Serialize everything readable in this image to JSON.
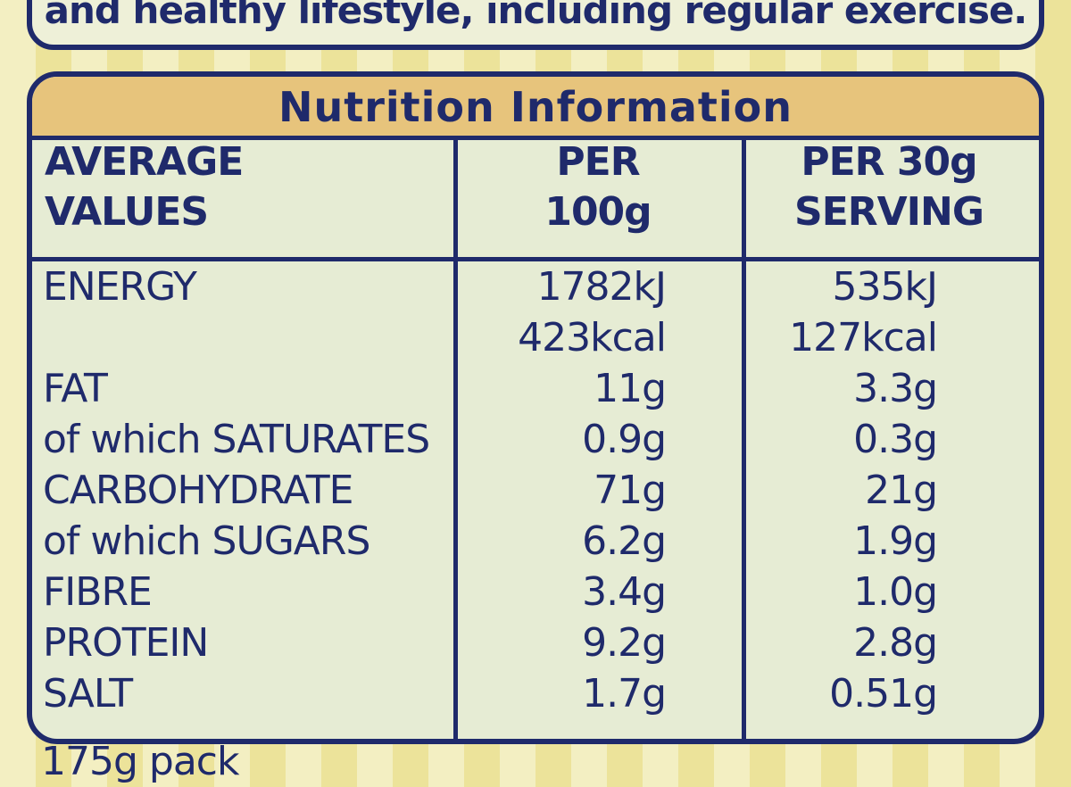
{
  "top_text": "and healthy lifestyle, including regular exercise.",
  "title": "Nutrition Information",
  "table": {
    "header": [
      [
        "AVERAGE",
        "VALUES"
      ],
      [
        "PER",
        "100g"
      ],
      [
        "PER 30g",
        "SERVING"
      ]
    ],
    "rows": [
      {
        "label": "ENERGY",
        "per_100g": [
          "1782kJ",
          "423kcal"
        ],
        "per_serving": [
          "535kJ",
          "127kcal"
        ]
      },
      {
        "label": "FAT",
        "per_100g": "11g",
        "per_serving": "3.3g"
      },
      {
        "label": "of which SATURATES",
        "per_100g": "0.9g",
        "per_serving": "0.3g"
      },
      {
        "label": "CARBOHYDRATE",
        "per_100g": "71g",
        "per_serving": "21g"
      },
      {
        "label": "of which SUGARS",
        "per_100g": "6.2g",
        "per_serving": "1.9g"
      },
      {
        "label": "FIBRE",
        "per_100g": "3.4g",
        "per_serving": "1.0g"
      },
      {
        "label": "PROTEIN",
        "per_100g": "9.2g",
        "per_serving": "2.8g"
      },
      {
        "label": "SALT",
        "per_100g": "1.7g",
        "per_serving": "0.51g"
      }
    ]
  },
  "footer_text": "175g pack"
}
